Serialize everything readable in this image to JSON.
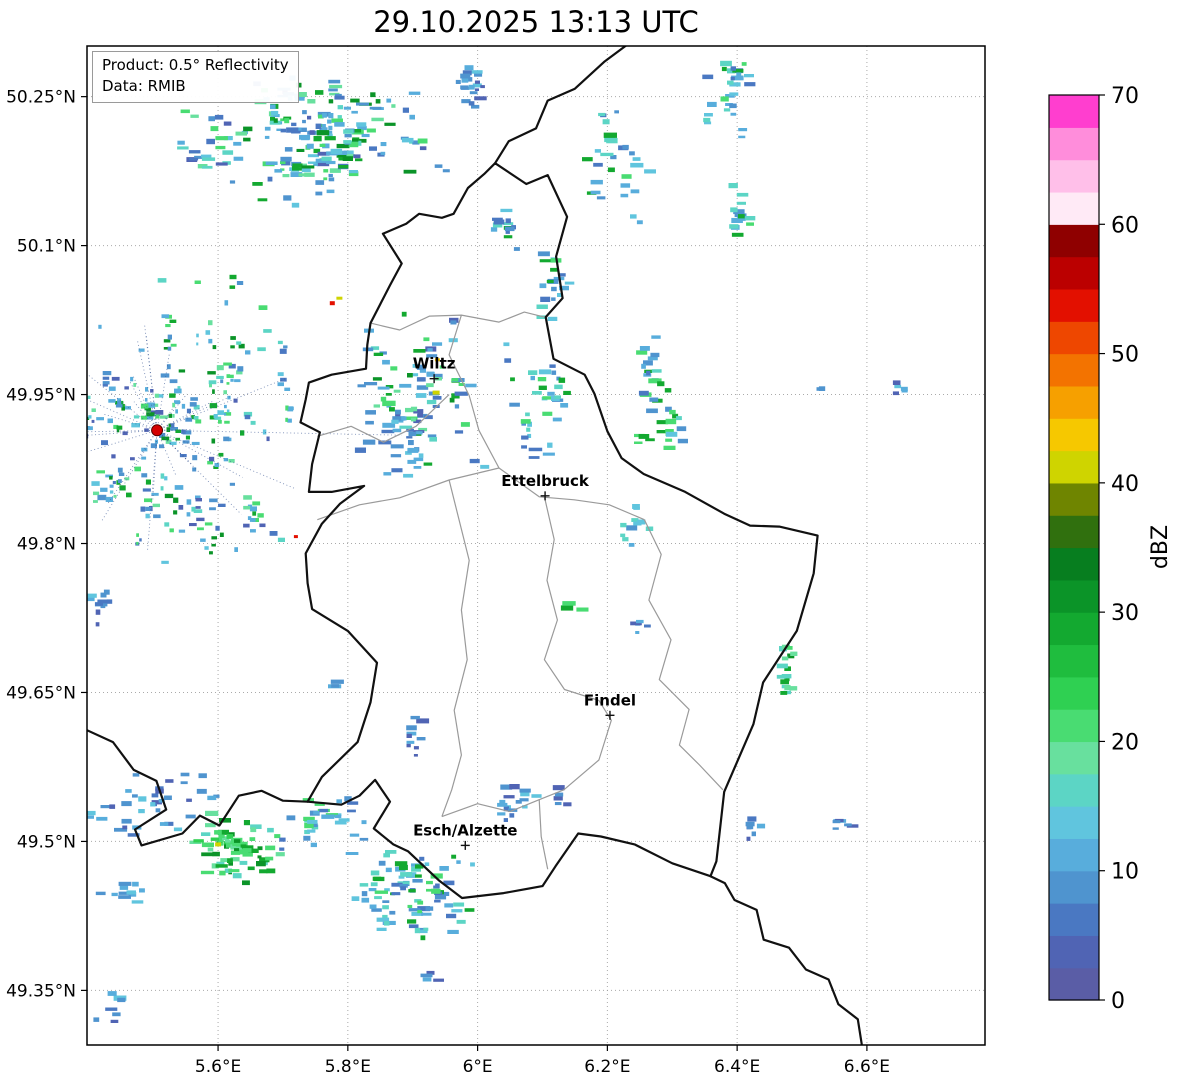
{
  "title": "29.10.2025 13:13 UTC",
  "info_box": {
    "line1": "Product: 0.5° Reflectivity",
    "line2": "Data: RMIB"
  },
  "axes": {
    "lon_range": [
      5.398,
      6.782
    ],
    "lat_range": [
      49.295,
      50.301
    ],
    "lat_ticks": [
      {
        "label": "50.25°N",
        "value": 50.25
      },
      {
        "label": "50.1°N",
        "value": 50.1
      },
      {
        "label": "49.95°N",
        "value": 49.95
      },
      {
        "label": "49.8°N",
        "value": 49.8
      },
      {
        "label": "49.65°N",
        "value": 49.65
      },
      {
        "label": "49.5°N",
        "value": 49.5
      },
      {
        "label": "49.35°N",
        "value": 49.35
      }
    ],
    "lon_ticks": [
      {
        "label": "5.6°E",
        "value": 5.6
      },
      {
        "label": "5.8°E",
        "value": 5.8
      },
      {
        "label": "6°E",
        "value": 6.0
      },
      {
        "label": "6.2°E",
        "value": 6.2
      },
      {
        "label": "6.4°E",
        "value": 6.4
      },
      {
        "label": "6.6°E",
        "value": 6.6
      }
    ]
  },
  "colorbar": {
    "label": "dBZ",
    "min": 0,
    "max": 70,
    "ticks": [
      0,
      10,
      20,
      30,
      40,
      50,
      60,
      70
    ],
    "colors_bottom_to_top": [
      "#5a5da6",
      "#5064b4",
      "#4a78c2",
      "#4f94cf",
      "#58addc",
      "#60c5de",
      "#5cd5c5",
      "#68e09e",
      "#49dc72",
      "#2fd052",
      "#1fbd3e",
      "#13a930",
      "#0b9428",
      "#077e1f",
      "#30700e",
      "#6f8500",
      "#cfd400",
      "#f6c800",
      "#f6a000",
      "#f37300",
      "#ee4700",
      "#e31000",
      "#bb0000",
      "#8f0000",
      "#ffeaf6",
      "#ffbfe9",
      "#ff8ddb",
      "#ff3ecf"
    ]
  },
  "cities": [
    {
      "name": "Wiltz",
      "lon": 5.933,
      "lat": 49.966
    },
    {
      "name": "Ettelbruck",
      "lon": 6.104,
      "lat": 49.848
    },
    {
      "name": "Findel",
      "lon": 6.204,
      "lat": 49.627
    },
    {
      "name": "Esch/Alzette",
      "lon": 5.981,
      "lat": 49.496
    }
  ],
  "radar_site": {
    "lon": 5.506,
    "lat": 49.914,
    "color": "#d40000"
  },
  "borders": {
    "country_color": "#111111",
    "internal_color": "#9a9a9a",
    "country": [
      [
        [
          6.027,
          50.183
        ],
        [
          6.075,
          50.162
        ],
        [
          6.108,
          50.171
        ],
        [
          6.138,
          50.129
        ],
        [
          6.121,
          50.089
        ],
        [
          6.131,
          50.047
        ],
        [
          6.105,
          50.028
        ],
        [
          6.117,
          49.986
        ],
        [
          6.165,
          49.97
        ],
        [
          6.18,
          49.951
        ],
        [
          6.2,
          49.913
        ],
        [
          6.222,
          49.886
        ],
        [
          6.256,
          49.87
        ],
        [
          6.32,
          49.852
        ],
        [
          6.38,
          49.83
        ],
        [
          6.42,
          49.818
        ],
        [
          6.465,
          49.817
        ],
        [
          6.524,
          49.808
        ],
        [
          6.518,
          49.77
        ],
        [
          6.492,
          49.712
        ],
        [
          6.44,
          49.66
        ],
        [
          6.425,
          49.618
        ],
        [
          6.38,
          49.55
        ],
        [
          6.368,
          49.48
        ],
        [
          6.359,
          49.465
        ],
        [
          6.3,
          49.478
        ],
        [
          6.242,
          49.497
        ],
        [
          6.19,
          49.505
        ],
        [
          6.155,
          49.508
        ],
        [
          6.12,
          49.475
        ],
        [
          6.1,
          49.455
        ],
        [
          6.04,
          49.448
        ],
        [
          5.976,
          49.443
        ],
        [
          5.94,
          49.461
        ],
        [
          5.893,
          49.49
        ],
        [
          5.87,
          49.497
        ],
        [
          5.84,
          49.513
        ],
        [
          5.865,
          49.54
        ],
        [
          5.842,
          49.562
        ],
        [
          5.818,
          49.546
        ],
        [
          5.79,
          49.537
        ],
        [
          5.738,
          49.54
        ],
        [
          5.76,
          49.565
        ],
        [
          5.815,
          49.6
        ],
        [
          5.835,
          49.64
        ],
        [
          5.845,
          49.68
        ],
        [
          5.8,
          49.712
        ],
        [
          5.745,
          49.734
        ],
        [
          5.738,
          49.76
        ],
        [
          5.735,
          49.79
        ],
        [
          5.76,
          49.82
        ],
        [
          5.788,
          49.84
        ],
        [
          5.825,
          49.858
        ],
        [
          5.775,
          49.852
        ],
        [
          5.74,
          49.852
        ],
        [
          5.745,
          49.88
        ],
        [
          5.757,
          49.912
        ],
        [
          5.727,
          49.922
        ],
        [
          5.735,
          49.945
        ],
        [
          5.74,
          49.962
        ],
        [
          5.775,
          49.97
        ],
        [
          5.828,
          49.976
        ],
        [
          5.83,
          50.0
        ],
        [
          5.835,
          50.022
        ],
        [
          5.865,
          50.06
        ],
        [
          5.883,
          50.082
        ],
        [
          5.854,
          50.112
        ],
        [
          5.89,
          50.122
        ],
        [
          5.91,
          50.132
        ],
        [
          5.945,
          50.128
        ],
        [
          5.963,
          50.132
        ],
        [
          5.985,
          50.158
        ],
        [
          6.01,
          50.172
        ],
        [
          6.027,
          50.183
        ]
      ],
      [
        [
          6.027,
          50.183
        ],
        [
          6.048,
          50.205
        ],
        [
          6.09,
          50.218
        ],
        [
          6.108,
          50.246
        ],
        [
          6.15,
          50.258
        ],
        [
          6.195,
          50.285
        ],
        [
          6.23,
          50.302
        ]
      ],
      [
        [
          5.398,
          49.612
        ],
        [
          5.438,
          49.6
        ],
        [
          5.47,
          49.572
        ],
        [
          5.505,
          49.561
        ],
        [
          5.52,
          49.532
        ],
        [
          5.472,
          49.512
        ],
        [
          5.482,
          49.496
        ],
        [
          5.545,
          49.508
        ],
        [
          5.572,
          49.526
        ],
        [
          5.602,
          49.516
        ],
        [
          5.632,
          49.546
        ],
        [
          5.667,
          49.551
        ],
        [
          5.7,
          49.541
        ],
        [
          5.738,
          49.54
        ]
      ],
      [
        [
          6.359,
          49.465
        ],
        [
          6.381,
          49.458
        ],
        [
          6.396,
          49.441
        ],
        [
          6.43,
          49.431
        ],
        [
          6.441,
          49.401
        ],
        [
          6.48,
          49.393
        ],
        [
          6.506,
          49.371
        ],
        [
          6.541,
          49.361
        ],
        [
          6.556,
          49.336
        ],
        [
          6.586,
          49.321
        ],
        [
          6.592,
          49.296
        ]
      ]
    ],
    "internal": [
      [
        [
          5.835,
          50.022
        ],
        [
          5.88,
          50.015
        ],
        [
          5.926,
          50.029
        ],
        [
          5.975,
          50.03
        ],
        [
          6.033,
          50.023
        ],
        [
          6.072,
          50.033
        ],
        [
          6.103,
          50.028
        ]
      ],
      [
        [
          5.753,
          49.824
        ],
        [
          5.818,
          49.839
        ],
        [
          5.88,
          49.846
        ],
        [
          5.956,
          49.864
        ],
        [
          6.033,
          49.876
        ],
        [
          6.095,
          49.847
        ],
        [
          6.149,
          49.844
        ],
        [
          6.203,
          49.839
        ],
        [
          6.257,
          49.824
        ]
      ],
      [
        [
          6.033,
          49.876
        ],
        [
          6.002,
          49.914
        ],
        [
          5.987,
          49.949
        ],
        [
          5.956,
          49.99
        ],
        [
          5.975,
          50.03
        ]
      ],
      [
        [
          5.956,
          49.864
        ],
        [
          5.987,
          49.783
        ],
        [
          5.975,
          49.733
        ],
        [
          5.984,
          49.683
        ],
        [
          5.964,
          49.632
        ],
        [
          5.975,
          49.587
        ],
        [
          5.96,
          49.552
        ],
        [
          5.945,
          49.525
        ]
      ],
      [
        [
          6.103,
          49.847
        ],
        [
          6.118,
          49.804
        ],
        [
          6.107,
          49.763
        ],
        [
          6.123,
          49.723
        ],
        [
          6.103,
          49.683
        ],
        [
          6.134,
          49.653
        ],
        [
          6.187,
          49.642
        ],
        [
          6.206,
          49.622
        ],
        [
          6.187,
          49.582
        ],
        [
          6.133,
          49.552
        ],
        [
          6.095,
          49.542
        ],
        [
          6.098,
          49.505
        ],
        [
          6.108,
          49.472
        ]
      ],
      [
        [
          6.257,
          49.824
        ],
        [
          6.283,
          49.789
        ],
        [
          6.264,
          49.743
        ],
        [
          6.298,
          49.703
        ],
        [
          6.28,
          49.663
        ],
        [
          6.326,
          49.633
        ],
        [
          6.311,
          49.597
        ],
        [
          6.342,
          49.577
        ],
        [
          6.378,
          49.552
        ]
      ],
      [
        [
          5.945,
          49.525
        ],
        [
          6.0,
          49.538
        ],
        [
          6.05,
          49.53
        ],
        [
          6.095,
          49.542
        ]
      ],
      [
        [
          5.753,
          49.908
        ],
        [
          5.805,
          49.918
        ],
        [
          5.855,
          49.902
        ],
        [
          5.905,
          49.918
        ],
        [
          5.956,
          49.95
        ]
      ]
    ]
  },
  "radar_echoes": {
    "palettes": {
      "mix": [
        "#4f94cf",
        "#4f94cf",
        "#58addc",
        "#58addc",
        "#60c5de",
        "#5cd5c5",
        "#49dc72",
        "#13a930",
        "#5064b4",
        "#68e09e",
        "#0b9428",
        "#4a78c2"
      ],
      "blue": [
        "#4f94cf",
        "#58addc",
        "#5064b4",
        "#4a78c2",
        "#60c5de",
        "#4f94cf"
      ],
      "green": [
        "#49dc72",
        "#2fd052",
        "#13a930",
        "#0b9428",
        "#68e09e",
        "#5cd5c5",
        "#49dc72"
      ],
      "bluegreen": [
        "#4f94cf",
        "#58addc",
        "#60c5de",
        "#49dc72",
        "#13a930",
        "#5cd5c5",
        "#4a78c2"
      ]
    },
    "clusters": [
      {
        "lon": 5.726,
        "lat": 50.206,
        "sx": 0.22,
        "sy": 0.07,
        "n": 130,
        "palette": "mix"
      },
      {
        "lon": 5.985,
        "lat": 50.268,
        "sx": 0.035,
        "sy": 0.035,
        "n": 12,
        "palette": "blue"
      },
      {
        "lon": 6.2,
        "lat": 50.185,
        "sx": 0.055,
        "sy": 0.065,
        "n": 20,
        "palette": "bluegreen"
      },
      {
        "lon": 6.38,
        "lat": 50.258,
        "sx": 0.035,
        "sy": 0.05,
        "n": 16,
        "palette": "bluegreen"
      },
      {
        "lon": 6.398,
        "lat": 50.13,
        "sx": 0.022,
        "sy": 0.032,
        "n": 10,
        "palette": "bluegreen"
      },
      {
        "lon": 5.545,
        "lat": 49.924,
        "sx": 0.2,
        "sy": 0.15,
        "n": 180,
        "palette": "mix",
        "small": true
      },
      {
        "lon": 5.905,
        "lat": 49.95,
        "sx": 0.1,
        "sy": 0.1,
        "n": 70,
        "palette": "mix"
      },
      {
        "lon": 6.09,
        "lat": 49.96,
        "sx": 0.055,
        "sy": 0.075,
        "n": 24,
        "palette": "bluegreen"
      },
      {
        "lon": 6.262,
        "lat": 49.95,
        "sx": 0.03,
        "sy": 0.06,
        "n": 16,
        "palette": "bluegreen"
      },
      {
        "lon": 6.53,
        "lat": 49.96,
        "sx": 0.008,
        "sy": 0.006,
        "n": 2,
        "palette": "blue"
      },
      {
        "lon": 6.648,
        "lat": 49.952,
        "sx": 0.004,
        "sy": 0.012,
        "n": 2,
        "palette": "blue"
      },
      {
        "lon": 6.24,
        "lat": 49.822,
        "sx": 0.02,
        "sy": 0.03,
        "n": 8,
        "palette": "bluegreen"
      },
      {
        "lon": 6.14,
        "lat": 49.737,
        "sx": 0.006,
        "sy": 0.006,
        "n": 2,
        "palette": "green"
      },
      {
        "lon": 6.25,
        "lat": 49.718,
        "sx": 0.008,
        "sy": 0.012,
        "n": 3,
        "palette": "blue"
      },
      {
        "lon": 6.472,
        "lat": 49.673,
        "sx": 0.012,
        "sy": 0.03,
        "n": 9,
        "palette": "green"
      },
      {
        "lon": 5.783,
        "lat": 49.66,
        "sx": 0.01,
        "sy": 0.01,
        "n": 3,
        "palette": "blue"
      },
      {
        "lon": 5.898,
        "lat": 49.612,
        "sx": 0.02,
        "sy": 0.02,
        "n": 6,
        "palette": "blue"
      },
      {
        "lon": 5.492,
        "lat": 49.54,
        "sx": 0.135,
        "sy": 0.038,
        "n": 28,
        "palette": "blue"
      },
      {
        "lon": 5.618,
        "lat": 49.497,
        "sx": 0.077,
        "sy": 0.038,
        "n": 42,
        "palette": "green"
      },
      {
        "lon": 5.76,
        "lat": 49.522,
        "sx": 0.077,
        "sy": 0.032,
        "n": 20,
        "palette": "bluegreen"
      },
      {
        "lon": 5.9,
        "lat": 49.45,
        "sx": 0.115,
        "sy": 0.05,
        "n": 62,
        "palette": "bluegreen"
      },
      {
        "lon": 6.052,
        "lat": 49.542,
        "sx": 0.025,
        "sy": 0.018,
        "n": 8,
        "palette": "blue"
      },
      {
        "lon": 6.126,
        "lat": 49.547,
        "sx": 0.01,
        "sy": 0.01,
        "n": 3,
        "palette": "blue"
      },
      {
        "lon": 6.42,
        "lat": 49.513,
        "sx": 0.014,
        "sy": 0.012,
        "n": 4,
        "palette": "blue"
      },
      {
        "lon": 6.552,
        "lat": 49.521,
        "sx": 0.01,
        "sy": 0.008,
        "n": 3,
        "palette": "blue"
      },
      {
        "lon": 5.435,
        "lat": 49.33,
        "sx": 0.042,
        "sy": 0.022,
        "n": 6,
        "palette": "blue"
      },
      {
        "lon": 5.922,
        "lat": 49.364,
        "sx": 0.012,
        "sy": 0.008,
        "n": 3,
        "palette": "blue"
      },
      {
        "lon": 6.118,
        "lat": 50.062,
        "sx": 0.03,
        "sy": 0.048,
        "n": 12,
        "palette": "bluegreen"
      },
      {
        "lon": 6.04,
        "lat": 50.12,
        "sx": 0.025,
        "sy": 0.032,
        "n": 8,
        "palette": "bluegreen"
      },
      {
        "lon": 6.295,
        "lat": 49.915,
        "sx": 0.014,
        "sy": 0.032,
        "n": 6,
        "palette": "bluegreen"
      },
      {
        "lon": 5.42,
        "lat": 49.74,
        "sx": 0.03,
        "sy": 0.02,
        "n": 6,
        "palette": "blue"
      },
      {
        "lon": 5.45,
        "lat": 49.447,
        "sx": 0.06,
        "sy": 0.018,
        "n": 7,
        "palette": "blue"
      }
    ],
    "specks": [
      {
        "lon": 5.776,
        "lat": 50.042,
        "color": "#e31000",
        "w": 5,
        "h": 4
      },
      {
        "lon": 5.787,
        "lat": 50.047,
        "color": "#cfd400",
        "w": 6,
        "h": 3
      },
      {
        "lon": 5.936,
        "lat": 49.952,
        "color": "#cfd400",
        "w": 7,
        "h": 4
      },
      {
        "lon": 5.938,
        "lat": 49.985,
        "color": "#f6c800",
        "w": 5,
        "h": 3
      },
      {
        "lon": 5.72,
        "lat": 49.807,
        "color": "#e31000",
        "w": 4,
        "h": 3
      },
      {
        "lon": 5.6,
        "lat": 49.497,
        "color": "#cfd400",
        "w": 6,
        "h": 4
      }
    ]
  }
}
